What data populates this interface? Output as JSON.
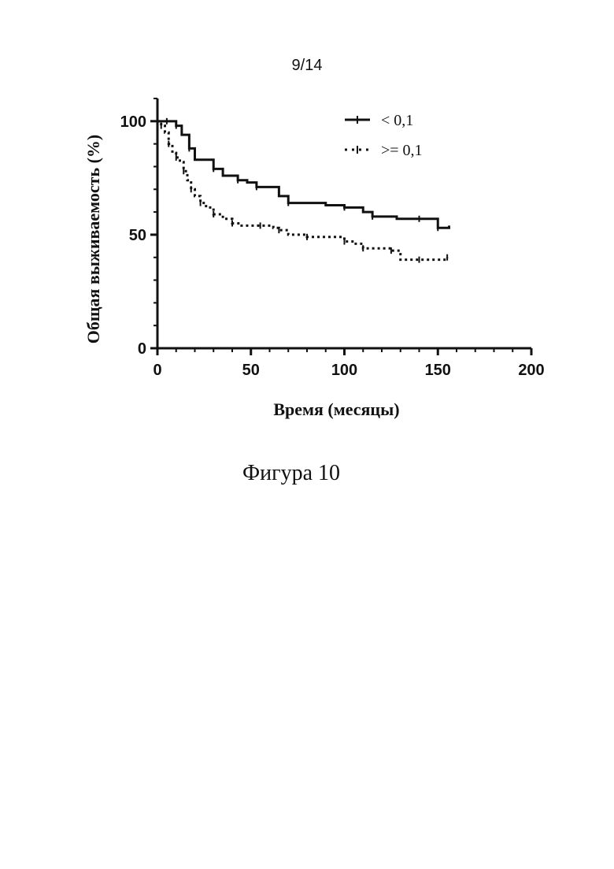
{
  "page_number": "9/14",
  "caption": "Фигура 10",
  "chart_data": {
    "type": "line",
    "subtype": "kaplan-meier",
    "xlabel": "Время (месяцы)",
    "ylabel": "Общая выживаемость (%)",
    "xlim": [
      0,
      200
    ],
    "ylim": [
      0,
      110
    ],
    "xticks": [
      0,
      50,
      100,
      150,
      200
    ],
    "yticks": [
      0,
      50,
      100
    ],
    "grid": false,
    "legend_position": "top-right",
    "series": [
      {
        "name": "< 0,1",
        "style": "solid",
        "color": "#111111",
        "x": [
          0,
          5,
          9,
          10,
          13,
          17,
          20,
          30,
          35,
          43,
          48,
          53,
          65,
          70,
          90,
          100,
          110,
          115,
          128,
          140,
          148,
          150,
          156
        ],
        "y": [
          100,
          100,
          100,
          98,
          94,
          88,
          83,
          79,
          76,
          74,
          73,
          71,
          67,
          64,
          63,
          62,
          60,
          58,
          57,
          57,
          57,
          53,
          54
        ]
      },
      {
        "name": ">= 0,1",
        "style": "dotted",
        "color": "#111111",
        "x": [
          0,
          2,
          4,
          6,
          8,
          10,
          12,
          14,
          16,
          18,
          20,
          23,
          26,
          30,
          35,
          40,
          45,
          55,
          62,
          65,
          70,
          80,
          90,
          100,
          105,
          110,
          120,
          125,
          130,
          140,
          150,
          155
        ],
        "y": [
          100,
          98,
          95,
          90,
          86,
          84,
          82,
          78,
          74,
          70,
          67,
          64,
          62,
          59,
          57,
          55,
          54,
          54,
          53,
          52,
          50,
          49,
          49,
          47,
          46,
          44,
          44,
          43,
          39,
          39,
          39,
          40
        ]
      }
    ]
  }
}
